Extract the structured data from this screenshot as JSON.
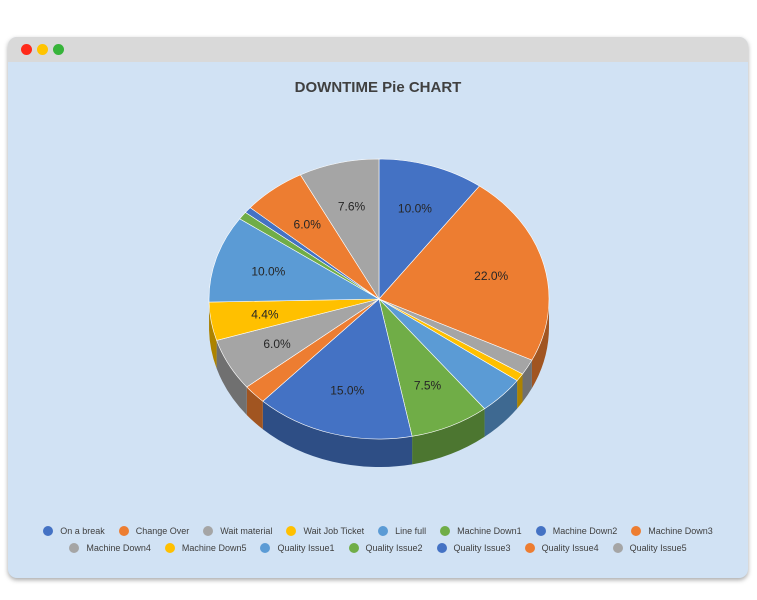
{
  "window": {
    "title_dots": [
      "close",
      "minimize",
      "zoom"
    ],
    "dot_colors": {
      "close": "#ff2a1a",
      "minimize": "#ffc400",
      "zoom": "#37b43a"
    },
    "background": "#d1e2f4"
  },
  "chart_data": {
    "type": "pie",
    "style": "3d",
    "title": "DOWNTIME Pie CHART",
    "legend_position": "bottom",
    "slices": [
      {
        "name": "On a break",
        "value": 10.0,
        "label": "10.0%",
        "color": "#4472c4"
      },
      {
        "name": "Change Over",
        "value": 22.0,
        "label": "22.0%",
        "color": "#ed7d31"
      },
      {
        "name": "Wait material",
        "value": 1.8,
        "label": "",
        "color": "#a5a5a5"
      },
      {
        "name": "Wait Job Ticket",
        "value": 0.9,
        "label": "",
        "color": "#ffc000"
      },
      {
        "name": "Line full",
        "value": 4.4,
        "label": "",
        "color": "#5b9bd5"
      },
      {
        "name": "Machine Down1",
        "value": 7.5,
        "label": "7.5%",
        "color": "#70ad47"
      },
      {
        "name": "Machine Down2",
        "value": 15.0,
        "label": "15.0%",
        "color": "#4472c4"
      },
      {
        "name": "Machine Down3",
        "value": 2.2,
        "label": "",
        "color": "#ed7d31"
      },
      {
        "name": "Machine Down4",
        "value": 6.0,
        "label": "6.0%",
        "color": "#a5a5a5"
      },
      {
        "name": "Machine Down5",
        "value": 4.4,
        "label": "4.4%",
        "color": "#ffc000"
      },
      {
        "name": "Quality Issue1",
        "value": 10.0,
        "label": "10.0%",
        "color": "#5b9bd5"
      },
      {
        "name": "Quality Issue2",
        "value": 0.9,
        "label": "",
        "color": "#70ad47"
      },
      {
        "name": "Quality Issue3",
        "value": 0.7,
        "label": "",
        "color": "#4472c4"
      },
      {
        "name": "Quality Issue4",
        "value": 6.0,
        "label": "6.0%",
        "color": "#ed7d31"
      },
      {
        "name": "Quality Issue5",
        "value": 7.6,
        "label": "7.6%",
        "color": "#a5a5a5"
      }
    ]
  }
}
